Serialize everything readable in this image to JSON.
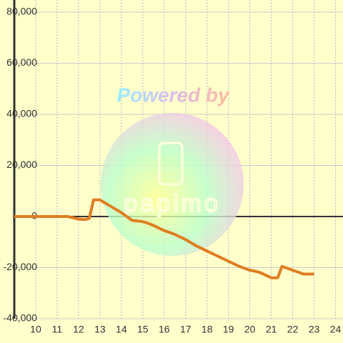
{
  "chart_data": {
    "type": "line",
    "watermark": "Powered by",
    "watermark_logo": "papimo",
    "x": [
      9,
      11.5,
      12,
      12.3,
      12.5,
      12.7,
      13,
      13.5,
      14,
      14.5,
      15,
      15.2,
      15.5,
      16,
      16.5,
      17,
      17.5,
      18,
      18.5,
      19,
      19.5,
      20,
      20.3,
      20.5,
      21,
      21.3,
      21.5,
      22,
      22.5,
      23
    ],
    "series": [
      {
        "color": "#e07d22",
        "values": [
          0,
          0,
          -1000,
          -1200,
          -800,
          6500,
          6500,
          4000,
          1500,
          -1500,
          -2000,
          -2500,
          -3500,
          -5500,
          -7000,
          -9000,
          -11500,
          -13500,
          -15500,
          -17500,
          -19500,
          -21000,
          -21500,
          -22000,
          -24000,
          -24000,
          -19500,
          -21000,
          -22500,
          -22500
        ]
      }
    ],
    "xlim": [
      9,
      24.35
    ],
    "xticks": [
      10,
      11,
      12,
      13,
      14,
      15,
      16,
      17,
      18,
      19,
      20,
      21,
      22,
      23,
      24
    ],
    "ylim": [
      -40000,
      80000
    ],
    "yticks": [
      {
        "value": -40000,
        "label": "-40,000"
      },
      {
        "value": -20000,
        "label": "-20,000"
      },
      0,
      {
        "value": 20000,
        "label": "20,000"
      },
      {
        "value": 40000,
        "label": "40,000"
      },
      {
        "value": 60000,
        "label": "60,000"
      },
      {
        "value": 80000,
        "label": "80,000"
      }
    ],
    "grid": true
  }
}
